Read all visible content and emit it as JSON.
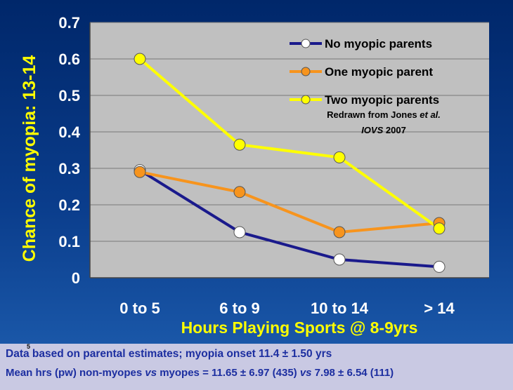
{
  "chart_data": {
    "type": "line",
    "categories": [
      "0 to 5",
      "6 to 9",
      "10 to 14",
      "> 14"
    ],
    "series": [
      {
        "name": "No myopic parents",
        "color": "#1a1a8c",
        "values": [
          0.295,
          0.125,
          0.05,
          0.03
        ]
      },
      {
        "name": "One myopic parent",
        "color": "#f7941d",
        "values": [
          0.29,
          0.235,
          0.125,
          0.15
        ]
      },
      {
        "name": "Two myopic parents",
        "color": "#ffff00",
        "values": [
          0.6,
          0.365,
          0.33,
          0.135
        ]
      }
    ],
    "xlabel": "Hours Playing Sports @ 8-9yrs",
    "ylabel": "Chance of myopia: 13-14",
    "ylim": [
      0,
      0.7
    ],
    "yticks": [
      "0",
      "0.1",
      "0.2",
      "0.3",
      "0.4",
      "0.5",
      "0.6",
      "0.7"
    ],
    "grid": true,
    "legend_position": "top-right",
    "annotation": {
      "line1": "Redrawn from  Jones ",
      "line1_italic": "et al.",
      "line2_italic": "IOVS",
      "line2": " 2007"
    }
  },
  "footer": {
    "slide_number": "5",
    "line1": "Data based on parental estimates; myopia onset 11.4 ± 1.50 yrs",
    "line2_a": "Mean hrs (pw) non-myopes ",
    "line2_vs1": "vs",
    "line2_b": " myopes = 11.65 ± 6.97 (435) ",
    "line2_vs2": "vs",
    "line2_c": " 7.98 ± 6.54 (111)"
  }
}
